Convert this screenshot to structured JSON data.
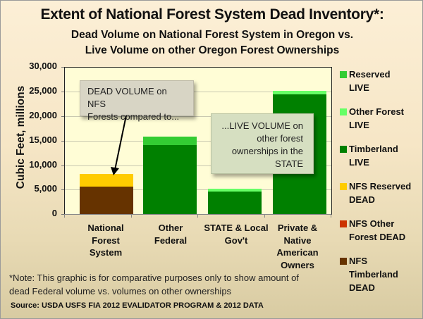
{
  "title": "Extent of National Forest System Dead Inventory*:",
  "subtitle_line1": "Dead Volume on National Forest System in Oregon vs.",
  "subtitle_line2": "Live Volume on other Oregon Forest Ownerships",
  "y_axis_label": "Cubic Feet, millions",
  "y_ticks": [
    "30,000",
    "25,000",
    "20,000",
    "15,000",
    "10,000",
    "5,000",
    "0"
  ],
  "x_labels": [
    {
      "l1": "National",
      "l2": "Forest",
      "l3": "System",
      "l4": ""
    },
    {
      "l1": "Other",
      "l2": "Federal",
      "l3": "",
      "l4": ""
    },
    {
      "l1": "STATE & Local",
      "l2": "Gov't",
      "l3": "",
      "l4": ""
    },
    {
      "l1": "Private &",
      "l2": "Native",
      "l3": "American",
      "l4": "Owners"
    }
  ],
  "callouts": {
    "dead": {
      "l1": "DEAD VOLUME on NFS",
      "l2": "Forests  compared to..."
    },
    "live": {
      "l1": "...LIVE VOLUME on",
      "l2": "other forest",
      "l3": "ownerships in the",
      "l4": "STATE"
    }
  },
  "legend": [
    {
      "l1": "Reserved",
      "l2": "LIVE",
      "l3": "",
      "color": "#33cc33"
    },
    {
      "l1": "Other Forest",
      "l2": "LIVE",
      "l3": "",
      "color": "#66ff66"
    },
    {
      "l1": "Timberland",
      "l2": "LIVE",
      "l3": "",
      "color": "#008000"
    },
    {
      "l1": "NFS Reserved",
      "l2": "DEAD",
      "l3": "",
      "color": "#ffcc00"
    },
    {
      "l1": "NFS Other",
      "l2": "Forest DEAD",
      "l3": "",
      "color": "#cc3300"
    },
    {
      "l1": "NFS",
      "l2": "Timberland",
      "l3": "DEAD",
      "color": "#663300"
    }
  ],
  "note_line1": "*Note: This graphic is for comparative purposes only to show amount of",
  "note_line2": "dead Federal volume vs. volumes on other ownerships",
  "source": "Source: USDA USFS FIA 2012 EVALIDATOR PROGRAM & 2012 DATA",
  "chart_data": {
    "type": "bar",
    "stacked": true,
    "title": "Extent of National Forest System Dead Inventory*: Dead Volume on National Forest System in Oregon vs. Live Volume on other Oregon Forest Ownerships",
    "xlabel": "",
    "ylabel": "Cubic Feet, millions",
    "ylim": [
      0,
      30000
    ],
    "yticks": [
      0,
      5000,
      10000,
      15000,
      20000,
      25000,
      30000
    ],
    "grid": true,
    "legend_position": "right",
    "categories": [
      "National Forest System",
      "Other Federal",
      "STATE & Local Gov't",
      "Private & Native American Owners"
    ],
    "series": [
      {
        "name": "NFS Timberland DEAD",
        "color": "#663300",
        "values": [
          5600,
          0,
          0,
          0
        ]
      },
      {
        "name": "NFS Other Forest DEAD",
        "color": "#cc3300",
        "values": [
          0,
          0,
          0,
          0
        ]
      },
      {
        "name": "NFS Reserved DEAD",
        "color": "#ffcc00",
        "values": [
          2650,
          0,
          0,
          0
        ]
      },
      {
        "name": "Timberland LIVE",
        "color": "#008000",
        "values": [
          0,
          14100,
          4650,
          24500
        ]
      },
      {
        "name": "Other Forest LIVE",
        "color": "#66ff66",
        "values": [
          0,
          100,
          580,
          700
        ]
      },
      {
        "name": "Reserved LIVE",
        "color": "#33cc33",
        "values": [
          0,
          1700,
          0,
          0
        ]
      }
    ],
    "annotations": [
      "DEAD VOLUME on NFS Forests  compared to...",
      "...LIVE VOLUME on other forest ownerships in the STATE"
    ]
  }
}
